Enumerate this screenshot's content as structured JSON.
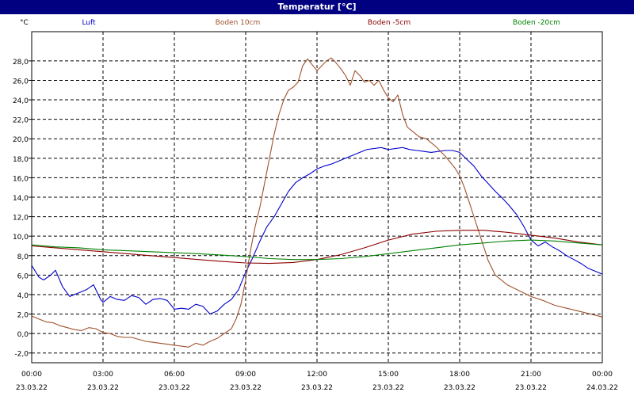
{
  "window": {
    "title": "Temperatur [°C]"
  },
  "chart_data": {
    "type": "line",
    "title": "Temperatur [°C]",
    "ylabel": "°C",
    "xlabel": "",
    "xlim": [
      0,
      24
    ],
    "ylim": [
      -3,
      31
    ],
    "grid": true,
    "legend_position": "top",
    "yticks": [
      -2,
      0,
      2,
      4,
      6,
      8,
      10,
      12,
      14,
      16,
      18,
      20,
      22,
      24,
      26,
      28
    ],
    "ytick_labels": [
      "-2,0",
      "0,0",
      "2,0",
      "4,0",
      "6,0",
      "8,0",
      "10,0",
      "12,0",
      "14,0",
      "16,0",
      "18,0",
      "20,0",
      "22,0",
      "24,0",
      "26,0",
      "28,0"
    ],
    "xticks": [
      0,
      3,
      6,
      9,
      12,
      15,
      18,
      21,
      24
    ],
    "xtick_times": [
      "00:00",
      "03:00",
      "06:00",
      "09:00",
      "12:00",
      "15:00",
      "18:00",
      "21:00",
      "00:00"
    ],
    "xtick_dates": [
      "23.03.22",
      "23.03.22",
      "23.03.22",
      "23.03.22",
      "23.03.22",
      "23.03.22",
      "23.03.22",
      "23.03.22",
      "24.03.22"
    ],
    "x_unit": "hours since 23.03.22 00:00",
    "series": [
      {
        "name": "Luft",
        "color": "#0000cc",
        "x": [
          0,
          0.3,
          0.5,
          0.8,
          1.0,
          1.3,
          1.6,
          1.8,
          2.0,
          2.3,
          2.6,
          2.9,
          3.0,
          3.3,
          3.6,
          3.9,
          4.2,
          4.5,
          4.8,
          5.1,
          5.4,
          5.7,
          6.0,
          6.3,
          6.6,
          6.9,
          7.2,
          7.5,
          7.8,
          8.1,
          8.4,
          8.7,
          9.0,
          9.3,
          9.6,
          9.9,
          10.2,
          10.5,
          10.8,
          11.1,
          11.4,
          11.7,
          12.0,
          12.3,
          12.6,
          12.9,
          13.2,
          13.5,
          13.8,
          14.1,
          14.4,
          14.7,
          15.0,
          15.3,
          15.6,
          15.9,
          16.2,
          16.5,
          16.8,
          17.1,
          17.4,
          17.7,
          18.0,
          18.3,
          18.6,
          18.9,
          19.2,
          19.5,
          19.8,
          20.1,
          20.4,
          20.7,
          21.0,
          21.3,
          21.6,
          21.9,
          22.2,
          22.5,
          22.8,
          23.1,
          23.4,
          23.7,
          24.0
        ],
        "y": [
          7.0,
          5.8,
          5.5,
          6.0,
          6.5,
          4.8,
          3.8,
          4.0,
          4.2,
          4.5,
          5.0,
          3.5,
          3.2,
          3.8,
          3.5,
          3.4,
          3.9,
          3.7,
          3.0,
          3.5,
          3.6,
          3.4,
          2.5,
          2.6,
          2.5,
          3.0,
          2.8,
          2.0,
          2.3,
          3.0,
          3.5,
          4.5,
          6.3,
          7.8,
          9.5,
          11.0,
          12.0,
          13.3,
          14.6,
          15.5,
          16.0,
          16.4,
          16.9,
          17.2,
          17.4,
          17.7,
          18.0,
          18.3,
          18.6,
          18.9,
          19.0,
          19.1,
          18.9,
          19.0,
          19.1,
          18.9,
          18.8,
          18.7,
          18.6,
          18.7,
          18.8,
          18.8,
          18.6,
          17.9,
          17.2,
          16.2,
          15.4,
          14.6,
          13.9,
          13.1,
          12.2,
          11.0,
          9.6,
          9.0,
          9.4,
          8.9,
          8.5,
          8.0,
          7.6,
          7.2,
          6.7,
          6.4,
          6.1
        ]
      },
      {
        "name": "Boden 10cm",
        "color": "#a0522d",
        "x": [
          0,
          0.3,
          0.6,
          0.9,
          1.2,
          1.5,
          1.8,
          2.1,
          2.4,
          2.7,
          3.0,
          3.3,
          3.6,
          3.9,
          4.2,
          4.5,
          4.8,
          5.1,
          5.4,
          5.7,
          6.0,
          6.3,
          6.6,
          6.9,
          7.2,
          7.5,
          7.8,
          8.1,
          8.4,
          8.6,
          8.8,
          9.0,
          9.2,
          9.4,
          9.6,
          9.8,
          10.0,
          10.2,
          10.4,
          10.6,
          10.8,
          11.0,
          11.2,
          11.4,
          11.6,
          11.8,
          12.0,
          12.2,
          12.4,
          12.6,
          12.8,
          13.0,
          13.2,
          13.4,
          13.6,
          13.8,
          14.0,
          14.2,
          14.4,
          14.6,
          14.8,
          15.0,
          15.2,
          15.4,
          15.6,
          15.8,
          16.0,
          16.3,
          16.6,
          17.0,
          17.4,
          17.8,
          18.0,
          18.2,
          18.4,
          18.6,
          18.8,
          19.0,
          19.2,
          19.5,
          20.0,
          20.5,
          21.0,
          21.5,
          22.0,
          22.5,
          23.0,
          23.5,
          24.0
        ],
        "y": [
          1.8,
          1.5,
          1.2,
          1.1,
          0.8,
          0.6,
          0.4,
          0.3,
          0.6,
          0.5,
          0.1,
          0.0,
          -0.3,
          -0.4,
          -0.4,
          -0.6,
          -0.8,
          -0.9,
          -1.0,
          -1.1,
          -1.2,
          -1.3,
          -1.4,
          -1.0,
          -1.2,
          -0.8,
          -0.5,
          0.0,
          0.5,
          1.5,
          3.0,
          5.5,
          8.5,
          11.0,
          13.0,
          15.5,
          18.0,
          20.5,
          22.5,
          24.0,
          25.0,
          25.3,
          25.8,
          27.5,
          28.2,
          27.6,
          27.0,
          27.5,
          28.0,
          28.3,
          27.8,
          27.2,
          26.5,
          25.5,
          27.0,
          26.5,
          25.8,
          26.0,
          25.5,
          26.0,
          25.0,
          24.2,
          23.8,
          24.5,
          22.5,
          21.2,
          20.8,
          20.2,
          20.0,
          19.2,
          18.2,
          17.0,
          16.2,
          15.0,
          13.5,
          12.0,
          10.5,
          9.0,
          7.5,
          6.0,
          5.0,
          4.4,
          3.8,
          3.4,
          2.9,
          2.6,
          2.3,
          2.0,
          1.7
        ]
      },
      {
        "name": "Boden -5cm",
        "color": "#8b0000",
        "x": [
          0,
          1,
          2,
          3,
          4,
          5,
          6,
          7,
          8,
          9,
          10,
          11,
          12,
          13,
          14,
          15,
          16,
          17,
          18,
          19,
          20,
          21,
          22,
          23,
          24
        ],
        "y": [
          9.0,
          8.8,
          8.6,
          8.4,
          8.2,
          8.0,
          7.8,
          7.6,
          7.4,
          7.25,
          7.2,
          7.3,
          7.6,
          8.1,
          8.8,
          9.6,
          10.2,
          10.5,
          10.6,
          10.6,
          10.4,
          10.1,
          9.8,
          9.4,
          9.1
        ]
      },
      {
        "name": "Boden -20cm",
        "color": "#008000",
        "x": [
          0,
          1,
          2,
          3,
          4,
          5,
          6,
          7,
          8,
          9,
          10,
          11,
          12,
          13,
          14,
          15,
          16,
          17,
          18,
          19,
          20,
          21,
          22,
          23,
          24
        ],
        "y": [
          9.1,
          8.9,
          8.8,
          8.6,
          8.5,
          8.4,
          8.3,
          8.2,
          8.05,
          7.9,
          7.7,
          7.6,
          7.6,
          7.7,
          7.9,
          8.2,
          8.5,
          8.8,
          9.1,
          9.3,
          9.5,
          9.6,
          9.5,
          9.3,
          9.1
        ]
      }
    ]
  }
}
